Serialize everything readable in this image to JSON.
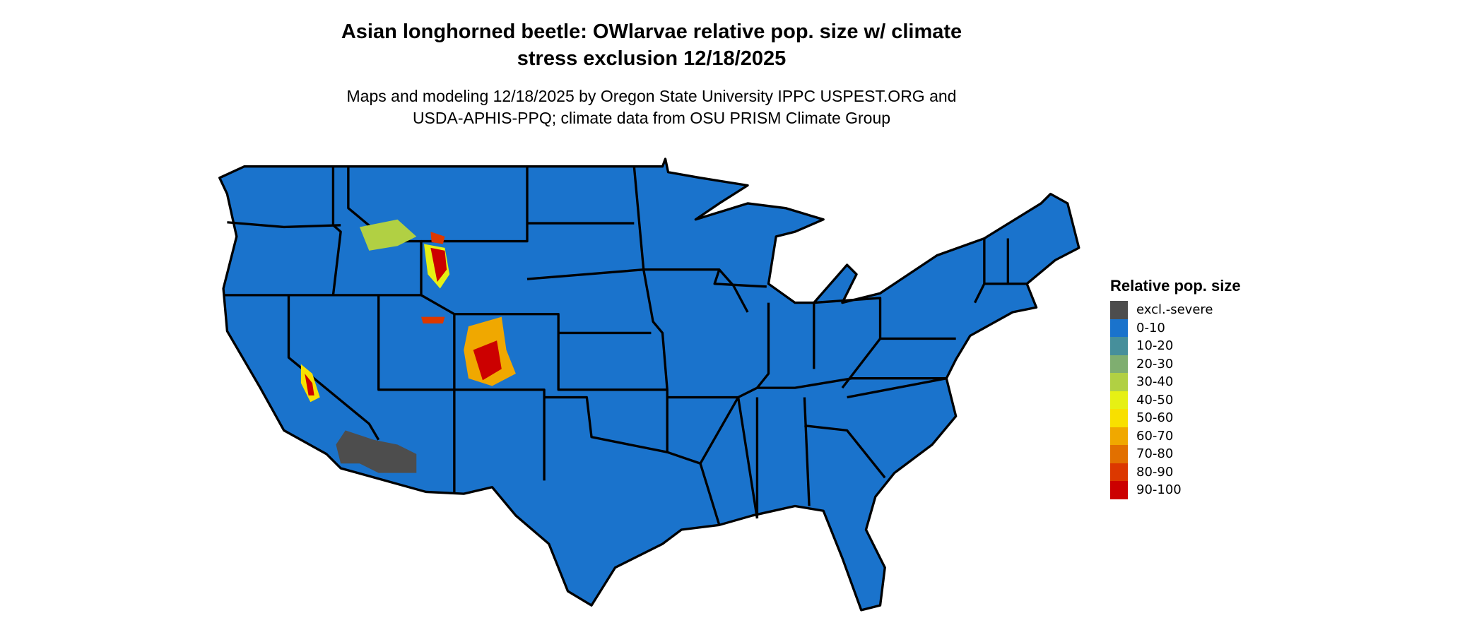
{
  "title": {
    "line1": "Asian longhorned beetle: OWlarvae relative pop. size w/ climate",
    "line2": "stress exclusion 12/18/2025"
  },
  "subtitle": {
    "line1": "Maps and modeling 12/18/2025 by Oregon State University IPPC USPEST.ORG and",
    "line2": "USDA-APHIS-PPQ; climate data from OSU PRISM Climate Group"
  },
  "map": {
    "region": "Contiguous United States",
    "dominant_class": "0-10",
    "excluded_color": "#4d4d4d",
    "border_color": "#000000"
  },
  "legend": {
    "title": "Relative pop. size",
    "items": [
      {
        "label": "excl.-severe",
        "color": "#4d4d4d"
      },
      {
        "label": "0-10",
        "color": "#1a73cc"
      },
      {
        "label": "10-20",
        "color": "#468f9b"
      },
      {
        "label": "20-30",
        "color": "#7fae70"
      },
      {
        "label": "30-40",
        "color": "#b1d043"
      },
      {
        "label": "40-50",
        "color": "#e6f014"
      },
      {
        "label": "50-60",
        "color": "#f8e000"
      },
      {
        "label": "60-70",
        "color": "#f0a800"
      },
      {
        "label": "70-80",
        "color": "#e27000"
      },
      {
        "label": "80-90",
        "color": "#dc3800"
      },
      {
        "label": "90-100",
        "color": "#cc0000"
      }
    ]
  }
}
